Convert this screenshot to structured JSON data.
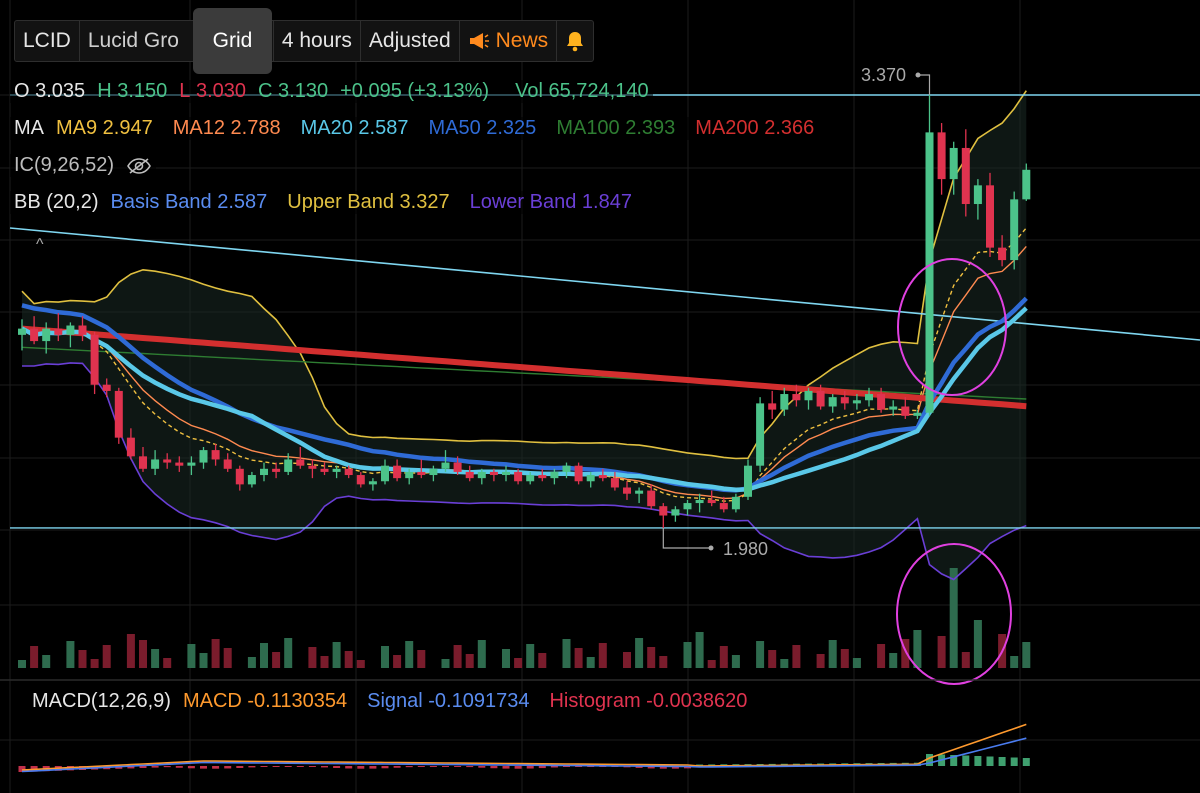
{
  "toolbar": {
    "symbol": "LCID",
    "name": "Lucid Gro",
    "timeframe": "4 hours",
    "adjusted": "Adjusted",
    "news": "News",
    "icons": {
      "news": "megaphone-icon",
      "alert": "bell-icon"
    }
  },
  "tooltip": "Grid",
  "ohlc": {
    "o_label": "O",
    "o": "3.035",
    "h_label": "H",
    "h": "3.150",
    "l_label": "L",
    "l": "3.030",
    "c_label": "C",
    "c": "3.130",
    "change": "+0.095 (+3.13%)",
    "vol_label": "Vol",
    "vol": "65,724,140"
  },
  "ma_row": {
    "label": "MA",
    "ma9": "MA9 2.947",
    "ma12": "MA12 2.788",
    "ma20": "MA20 2.587",
    "ma50": "MA50 2.325",
    "ma100": "MA100 2.393",
    "ma200": "MA200 2.366"
  },
  "ic_row": {
    "label": "IC(9,26,52)",
    "icon": "eye-hidden-icon"
  },
  "bb_row": {
    "label": "BB (20,2)",
    "basis": "Basis Band 2.587",
    "upper": "Upper Band 3.327",
    "lower": "Lower Band 1.847"
  },
  "macd_row": {
    "label": "MACD(12,26,9)",
    "macd": "MACD -0.1130354",
    "signal": "Signal -0.1091734",
    "hist": "Histogram -0.0038620"
  },
  "colors": {
    "up": "#4cc38a",
    "down": "#e0334f",
    "ma9": "#f0c040",
    "ma12": "#ff8a50",
    "ma20": "#5ac8e8",
    "ma50": "#2f6bd6",
    "ma100": "#2e7d32",
    "ma200": "#d32f2f",
    "bb_upper": "#e0c040",
    "bb_lower": "#6a3fd6",
    "basis": "#5a8cf0",
    "hline": "#7fd6f0",
    "circle": "#e040e0",
    "macd": "#ff9a2e",
    "signal": "#4a7cf0",
    "histogram": "#e0334f"
  },
  "chart_data": {
    "type": "candlestick",
    "symbol": "LCID",
    "interval": "4 hours",
    "high_marker": "3.370",
    "low_marker": "1.980",
    "candles": [
      [
        2.6,
        2.65,
        2.55,
        2.62
      ],
      [
        2.62,
        2.66,
        2.57,
        2.58
      ],
      [
        2.58,
        2.64,
        2.54,
        2.62
      ],
      [
        2.62,
        2.67,
        2.58,
        2.6
      ],
      [
        2.6,
        2.64,
        2.56,
        2.63
      ],
      [
        2.63,
        2.66,
        2.58,
        2.6
      ],
      [
        2.6,
        2.61,
        2.41,
        2.44
      ],
      [
        2.44,
        2.46,
        2.4,
        2.42
      ],
      [
        2.42,
        2.43,
        2.25,
        2.27
      ],
      [
        2.27,
        2.3,
        2.2,
        2.21
      ],
      [
        2.21,
        2.24,
        2.16,
        2.17
      ],
      [
        2.17,
        2.23,
        2.15,
        2.2
      ],
      [
        2.2,
        2.22,
        2.17,
        2.19
      ],
      [
        2.19,
        2.21,
        2.16,
        2.18
      ],
      [
        2.18,
        2.21,
        2.15,
        2.19
      ],
      [
        2.19,
        2.24,
        2.17,
        2.23
      ],
      [
        2.23,
        2.25,
        2.18,
        2.2
      ],
      [
        2.2,
        2.22,
        2.16,
        2.17
      ],
      [
        2.17,
        2.18,
        2.1,
        2.12
      ],
      [
        2.12,
        2.16,
        2.11,
        2.15
      ],
      [
        2.15,
        2.19,
        2.13,
        2.17
      ],
      [
        2.17,
        2.19,
        2.14,
        2.16
      ],
      [
        2.16,
        2.22,
        2.15,
        2.2
      ],
      [
        2.2,
        2.24,
        2.17,
        2.18
      ],
      [
        2.18,
        2.2,
        2.14,
        2.17
      ],
      [
        2.17,
        2.19,
        2.15,
        2.16
      ],
      [
        2.16,
        2.18,
        2.14,
        2.17
      ],
      [
        2.17,
        2.18,
        2.14,
        2.15
      ],
      [
        2.15,
        2.16,
        2.11,
        2.12
      ],
      [
        2.12,
        2.14,
        2.1,
        2.13
      ],
      [
        2.13,
        2.2,
        2.12,
        2.18
      ],
      [
        2.18,
        2.2,
        2.13,
        2.14
      ],
      [
        2.14,
        2.17,
        2.12,
        2.16
      ],
      [
        2.16,
        2.2,
        2.14,
        2.15
      ],
      [
        2.15,
        2.18,
        2.13,
        2.17
      ],
      [
        2.17,
        2.23,
        2.16,
        2.19
      ],
      [
        2.19,
        2.21,
        2.15,
        2.16
      ],
      [
        2.16,
        2.18,
        2.13,
        2.14
      ],
      [
        2.14,
        2.17,
        2.12,
        2.16
      ],
      [
        2.16,
        2.17,
        2.13,
        2.15
      ],
      [
        2.15,
        2.18,
        2.13,
        2.16
      ],
      [
        2.16,
        2.17,
        2.12,
        2.13
      ],
      [
        2.13,
        2.16,
        2.12,
        2.15
      ],
      [
        2.15,
        2.17,
        2.13,
        2.14
      ],
      [
        2.14,
        2.17,
        2.12,
        2.16
      ],
      [
        2.16,
        2.19,
        2.14,
        2.18
      ],
      [
        2.18,
        2.19,
        2.12,
        2.13
      ],
      [
        2.13,
        2.16,
        2.11,
        2.15
      ],
      [
        2.15,
        2.17,
        2.13,
        2.14
      ],
      [
        2.14,
        2.16,
        2.1,
        2.11
      ],
      [
        2.11,
        2.13,
        2.07,
        2.09
      ],
      [
        2.09,
        2.11,
        2.06,
        2.1
      ],
      [
        2.1,
        2.12,
        2.04,
        2.05
      ],
      [
        2.05,
        2.06,
        1.98,
        2.02
      ],
      [
        2.02,
        2.05,
        2.0,
        2.04
      ],
      [
        2.04,
        2.07,
        2.02,
        2.06
      ],
      [
        2.06,
        2.09,
        2.03,
        2.07
      ],
      [
        2.07,
        2.1,
        2.05,
        2.06
      ],
      [
        2.06,
        2.08,
        2.03,
        2.04
      ],
      [
        2.04,
        2.09,
        2.03,
        2.08
      ],
      [
        2.08,
        2.2,
        2.07,
        2.18
      ],
      [
        2.18,
        2.4,
        2.16,
        2.38
      ],
      [
        2.38,
        2.42,
        2.33,
        2.36
      ],
      [
        2.36,
        2.43,
        2.34,
        2.41
      ],
      [
        2.41,
        2.44,
        2.37,
        2.39
      ],
      [
        2.39,
        2.43,
        2.36,
        2.42
      ],
      [
        2.42,
        2.44,
        2.36,
        2.37
      ],
      [
        2.37,
        2.41,
        2.35,
        2.4
      ],
      [
        2.4,
        2.42,
        2.36,
        2.38
      ],
      [
        2.38,
        2.41,
        2.36,
        2.39
      ],
      [
        2.39,
        2.43,
        2.37,
        2.41
      ],
      [
        2.41,
        2.43,
        2.35,
        2.36
      ],
      [
        2.36,
        2.39,
        2.34,
        2.37
      ],
      [
        2.37,
        2.4,
        2.33,
        2.34
      ],
      [
        2.34,
        2.36,
        2.33,
        2.35
      ],
      [
        2.35,
        3.37,
        2.34,
        3.25
      ],
      [
        3.25,
        3.28,
        3.05,
        3.1
      ],
      [
        3.1,
        3.22,
        3.05,
        3.2
      ],
      [
        3.2,
        3.26,
        2.98,
        3.02
      ],
      [
        3.02,
        3.1,
        2.97,
        3.08
      ],
      [
        3.08,
        3.12,
        2.85,
        2.88
      ],
      [
        2.88,
        2.92,
        2.82,
        2.84
      ],
      [
        2.84,
        3.06,
        2.81,
        3.035
      ],
      [
        3.035,
        3.15,
        3.03,
        3.13
      ]
    ],
    "volume_bars": 68,
    "ylim": [
      1.7,
      3.6
    ],
    "bollinger": {
      "upper": 3.327,
      "basis": 2.587,
      "lower": 1.847
    },
    "moving_averages": {
      "MA9": 2.947,
      "MA12": 2.788,
      "MA20": 2.587,
      "MA50": 2.325,
      "MA100": 2.393,
      "MA200": 2.366
    },
    "macd": {
      "macd": -0.1130354,
      "signal": -0.1091734,
      "histogram": -0.003862
    },
    "grid": true
  }
}
